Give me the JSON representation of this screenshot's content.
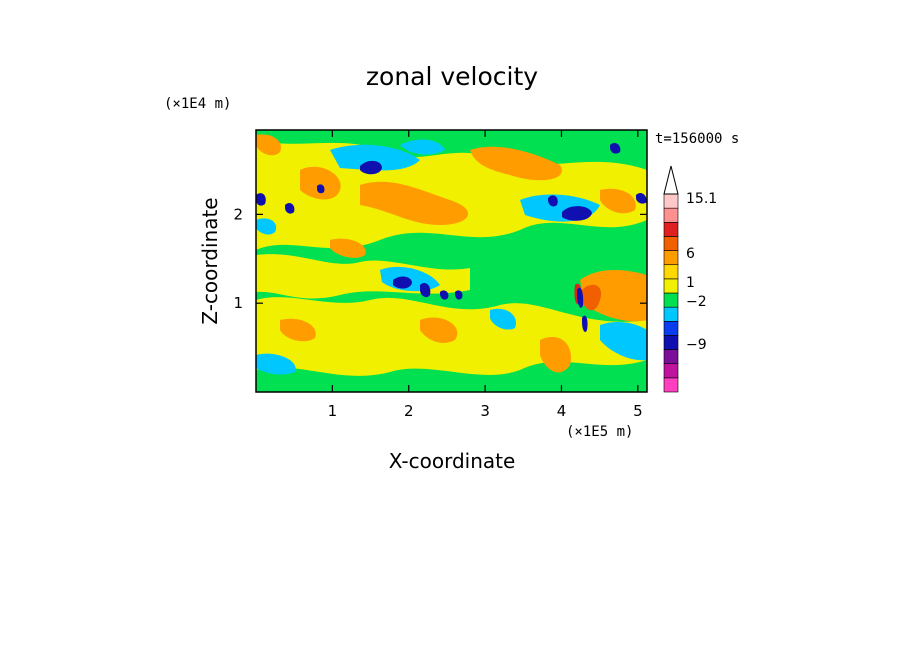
{
  "chart_data": {
    "type": "heatmap",
    "title": "zonal velocity",
    "time_label": "t=156000 s",
    "xlabel": "X-coordinate",
    "ylabel": "Z-coordinate",
    "x_scale_label": "(×1E5 m)",
    "y_scale_label": "(×1E4 m)",
    "xlim": [
      0,
      5.12
    ],
    "ylim": [
      0,
      2.95
    ],
    "x_ticks": [
      "1",
      "2",
      "3",
      "4",
      "5"
    ],
    "x_tick_values": [
      1,
      2,
      3,
      4,
      5
    ],
    "y_ticks": [
      "1",
      "2"
    ],
    "y_tick_values": [
      1,
      2
    ],
    "colorbar": {
      "labels": [
        "15.1",
        "6",
        "1",
        "−2",
        "−9"
      ],
      "label_values": [
        15.1,
        6,
        1,
        -2,
        -9
      ],
      "bands": [
        {
          "color": "#ff3fbf"
        },
        {
          "color": "#c0149f"
        },
        {
          "color": "#7a0f9a"
        },
        {
          "color": "#1010b0"
        },
        {
          "color": "#0a3cf0"
        },
        {
          "color": "#00c8ff"
        },
        {
          "color": "#00e050"
        },
        {
          "color": "#f0f000"
        },
        {
          "color": "#ffd800"
        },
        {
          "color": "#ff9c00"
        },
        {
          "color": "#f06000"
        },
        {
          "color": "#e02020"
        },
        {
          "color": "#ff9090"
        },
        {
          "color": "#ffc8c8"
        }
      ]
    }
  }
}
